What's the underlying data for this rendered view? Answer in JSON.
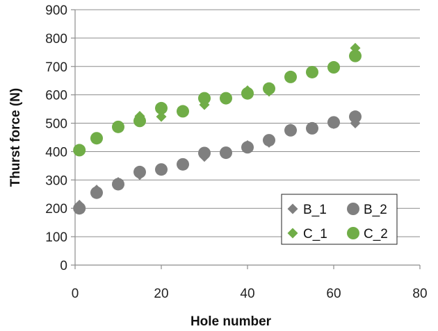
{
  "chart_data": {
    "type": "scatter",
    "title": "",
    "xlabel": "Hole number",
    "ylabel": "Thurst  force (N)",
    "xlim": [
      0,
      80
    ],
    "ylim": [
      0,
      900
    ],
    "xticks": [
      0,
      20,
      40,
      60,
      80
    ],
    "yticks": [
      0,
      100,
      200,
      300,
      400,
      500,
      600,
      700,
      800,
      900
    ],
    "grid": "horizontal",
    "legend_position": "bottom-right",
    "series": [
      {
        "name": "B_1",
        "marker": "diamond",
        "color": "#7f7f7f",
        "x": [
          1,
          5,
          10,
          15,
          20,
          25,
          30,
          35,
          40,
          45,
          50,
          55,
          60,
          65
        ],
        "y": [
          212,
          265,
          292,
          318,
          338,
          358,
          382,
          398,
          422,
          432,
          480,
          485,
          498,
          500
        ]
      },
      {
        "name": "B_2",
        "marker": "circle",
        "color": "#7f7f7f",
        "x": [
          1,
          5,
          10,
          15,
          20,
          25,
          30,
          35,
          40,
          45,
          50,
          55,
          60,
          65
        ],
        "y": [
          200,
          255,
          285,
          328,
          337,
          355,
          395,
          396,
          415,
          440,
          475,
          482,
          503,
          523
        ]
      },
      {
        "name": "C_1",
        "marker": "diamond",
        "color": "#70ad47",
        "x": [
          1,
          5,
          10,
          15,
          20,
          25,
          30,
          35,
          40,
          45,
          50,
          55,
          60,
          65
        ],
        "y": [
          408,
          448,
          490,
          525,
          523,
          545,
          565,
          590,
          615,
          612,
          665,
          682,
          698,
          765
        ]
      },
      {
        "name": "C_2",
        "marker": "circle",
        "color": "#70ad47",
        "x": [
          1,
          5,
          10,
          15,
          20,
          25,
          30,
          35,
          40,
          45,
          50,
          55,
          60,
          65
        ],
        "y": [
          405,
          447,
          487,
          508,
          553,
          542,
          588,
          588,
          605,
          622,
          663,
          680,
          697,
          737
        ]
      }
    ]
  }
}
